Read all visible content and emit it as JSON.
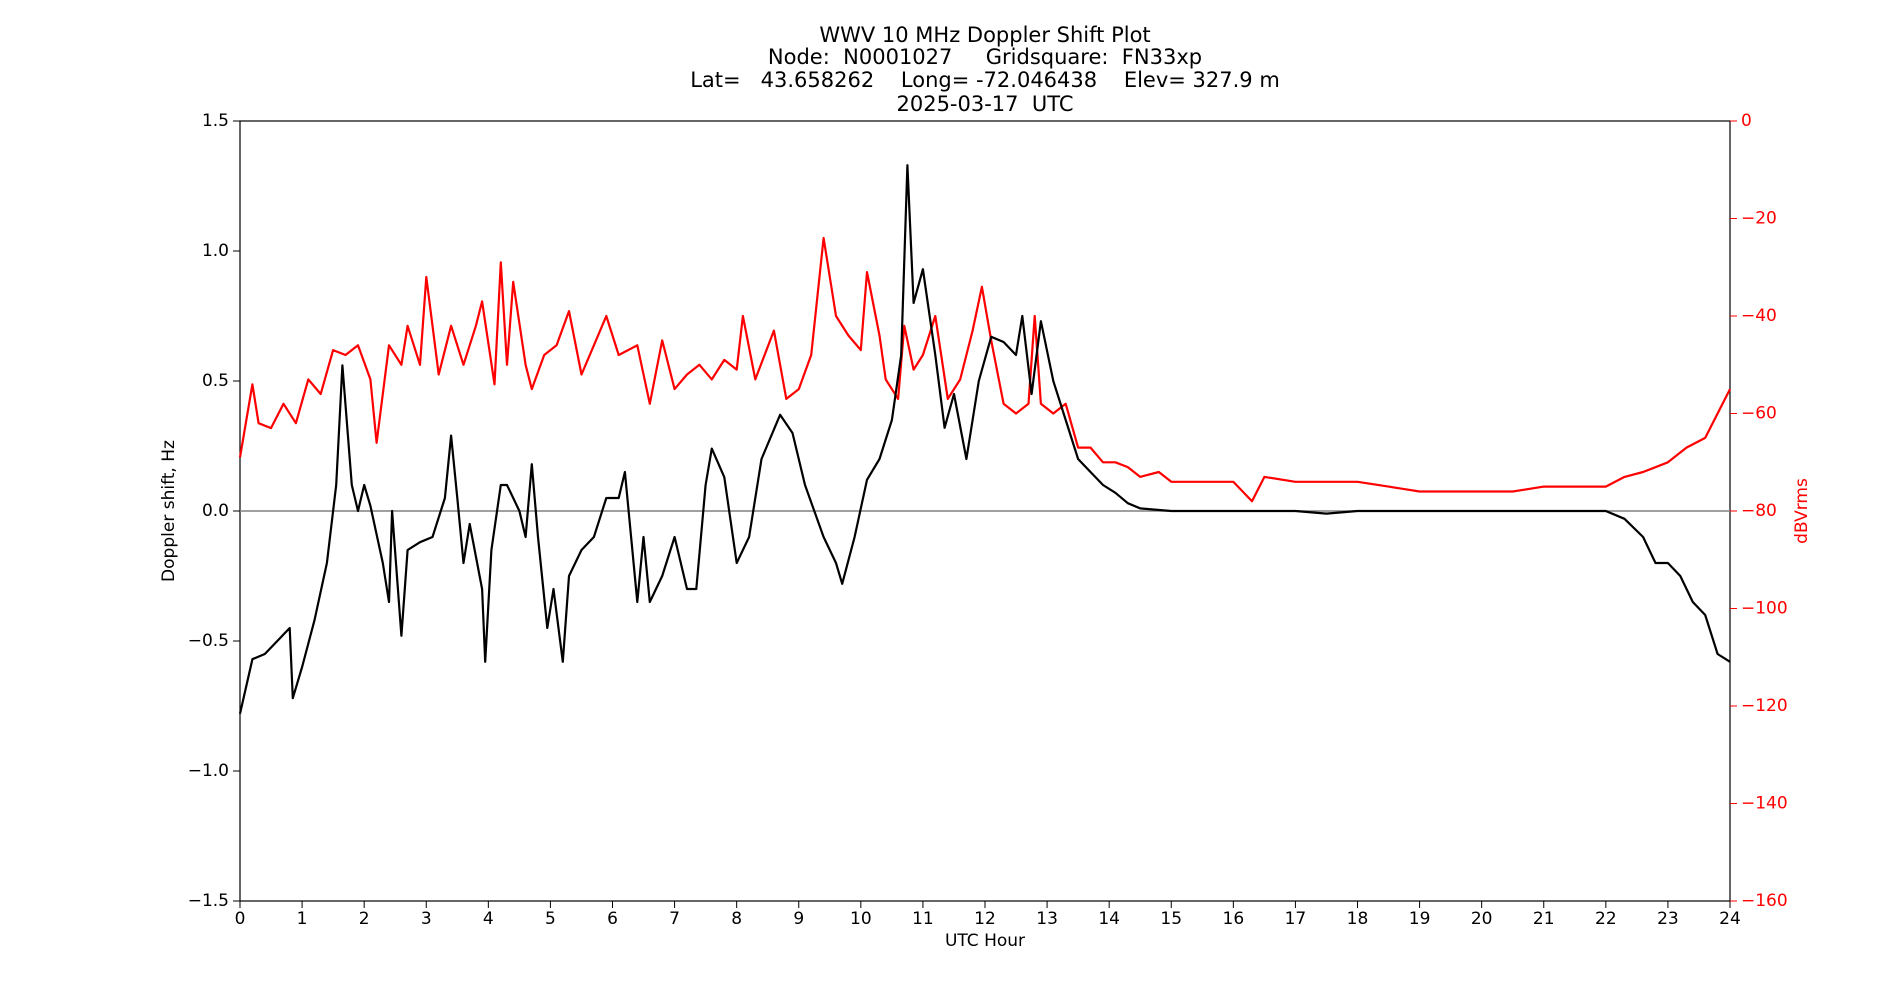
{
  "chart_data": {
    "type": "line",
    "title": [
      "WWV 10 MHz Doppler Shift Plot",
      "Node:  N0001027     Gridsquare:  FN33xp",
      "Lat=   43.658262    Long= -72.046438    Elev= 327.9 m",
      "2025-03-17  UTC"
    ],
    "xlabel": "UTC Hour",
    "ylabel": "Doppler shift, Hz",
    "y2label": "dBVrms",
    "xlim": [
      0,
      24
    ],
    "xticks": [
      0,
      1,
      2,
      3,
      4,
      5,
      6,
      7,
      8,
      9,
      10,
      11,
      12,
      13,
      14,
      15,
      16,
      17,
      18,
      19,
      20,
      21,
      22,
      23,
      24
    ],
    "ylim": [
      -1.5,
      1.5
    ],
    "yticks": [
      {
        "value": -1.5,
        "label": "−1.5"
      },
      {
        "value": -1,
        "label": "−1.0"
      },
      {
        "value": -0.5,
        "label": "−0.5"
      },
      {
        "value": 0,
        "label": "0.0"
      },
      0.5,
      {
        "value": 1,
        "label": "1.0"
      },
      1.5
    ],
    "y2lim": [
      -160,
      0
    ],
    "y2ticks": [
      {
        "value": -160,
        "label": "−160"
      },
      {
        "value": -140,
        "label": "−140"
      },
      {
        "value": -120,
        "label": "−120"
      },
      {
        "value": -100,
        "label": "−100"
      },
      {
        "value": -80,
        "label": "−80"
      },
      {
        "value": -60,
        "label": "−60"
      },
      {
        "value": -40,
        "label": "−40"
      },
      {
        "value": -20,
        "label": "−20"
      },
      0
    ],
    "y2color": "#ff0000",
    "hline": 0,
    "hline_color": "#808080",
    "series": [
      {
        "color": "#000000",
        "axis": "y",
        "x": [
          0,
          0.2,
          0.4,
          0.6,
          0.8,
          0.85,
          1.0,
          1.2,
          1.4,
          1.55,
          1.65,
          1.8,
          1.9,
          2.0,
          2.1,
          2.3,
          2.4,
          2.45,
          2.6,
          2.7,
          2.9,
          3.1,
          3.3,
          3.4,
          3.5,
          3.6,
          3.7,
          3.9,
          3.95,
          4.05,
          4.2,
          4.3,
          4.5,
          4.6,
          4.7,
          4.8,
          4.95,
          5.05,
          5.2,
          5.3,
          5.5,
          5.7,
          5.9,
          6.1,
          6.2,
          6.4,
          6.5,
          6.6,
          6.8,
          7.0,
          7.2,
          7.35,
          7.5,
          7.6,
          7.8,
          8.0,
          8.2,
          8.4,
          8.7,
          8.9,
          9.1,
          9.4,
          9.6,
          9.7,
          9.9,
          10.1,
          10.3,
          10.5,
          10.65,
          10.75,
          10.85,
          11.0,
          11.2,
          11.35,
          11.5,
          11.7,
          11.9,
          12.1,
          12.3,
          12.5,
          12.6,
          12.75,
          12.9,
          13.1,
          13.3,
          13.5,
          13.7,
          13.9,
          14.1,
          14.3,
          14.5,
          15,
          16,
          17,
          17.5,
          18,
          20,
          21,
          22,
          22.3,
          22.6,
          22.8,
          23,
          23.2,
          23.4,
          23.6,
          23.8,
          24
        ],
        "values": [
          -0.78,
          -0.57,
          -0.55,
          -0.5,
          -0.45,
          -0.72,
          -0.6,
          -0.42,
          -0.2,
          0.1,
          0.56,
          0.1,
          0.0,
          0.1,
          0.02,
          -0.2,
          -0.35,
          0.0,
          -0.48,
          -0.15,
          -0.12,
          -0.1,
          0.05,
          0.29,
          0.05,
          -0.2,
          -0.05,
          -0.3,
          -0.58,
          -0.15,
          0.1,
          0.1,
          0.0,
          -0.1,
          0.18,
          -0.1,
          -0.45,
          -0.3,
          -0.58,
          -0.25,
          -0.15,
          -0.1,
          0.05,
          0.05,
          0.15,
          -0.35,
          -0.1,
          -0.35,
          -0.25,
          -0.1,
          -0.3,
          -0.3,
          0.1,
          0.24,
          0.13,
          -0.2,
          -0.1,
          0.2,
          0.37,
          0.3,
          0.1,
          -0.1,
          -0.2,
          -0.28,
          -0.1,
          0.12,
          0.2,
          0.35,
          0.6,
          1.33,
          0.8,
          0.93,
          0.6,
          0.32,
          0.45,
          0.2,
          0.5,
          0.67,
          0.65,
          0.6,
          0.75,
          0.45,
          0.73,
          0.5,
          0.35,
          0.2,
          0.15,
          0.1,
          0.07,
          0.03,
          0.01,
          0.0,
          0.0,
          0.0,
          -0.01,
          0.0,
          0.0,
          0.0,
          0.0,
          -0.03,
          -0.1,
          -0.2,
          -0.2,
          -0.25,
          -0.35,
          -0.4,
          -0.55,
          -0.58
        ]
      },
      {
        "color": "#ff0000",
        "axis": "y2",
        "x": [
          0,
          0.2,
          0.3,
          0.5,
          0.7,
          0.9,
          1.1,
          1.3,
          1.5,
          1.7,
          1.9,
          2.1,
          2.2,
          2.4,
          2.6,
          2.7,
          2.9,
          3.0,
          3.2,
          3.4,
          3.6,
          3.8,
          3.9,
          4.1,
          4.2,
          4.3,
          4.4,
          4.6,
          4.7,
          4.9,
          5.1,
          5.3,
          5.5,
          5.7,
          5.9,
          6.1,
          6.4,
          6.6,
          6.8,
          7.0,
          7.2,
          7.4,
          7.6,
          7.8,
          8.0,
          8.1,
          8.3,
          8.6,
          8.8,
          9.0,
          9.2,
          9.4,
          9.6,
          9.8,
          10.0,
          10.1,
          10.3,
          10.4,
          10.6,
          10.7,
          10.85,
          11.0,
          11.2,
          11.4,
          11.6,
          11.8,
          11.95,
          12.1,
          12.3,
          12.5,
          12.7,
          12.8,
          12.9,
          13.1,
          13.3,
          13.5,
          13.7,
          13.9,
          14.1,
          14.3,
          14.5,
          14.8,
          15.0,
          15.5,
          16.0,
          16.3,
          16.5,
          17.0,
          17.5,
          18,
          18.5,
          19,
          19.5,
          20,
          20.5,
          21,
          21.5,
          22,
          22.3,
          22.6,
          23.0,
          23.3,
          23.6,
          23.8,
          24.0
        ],
        "values": [
          -69,
          -54,
          -62,
          -63,
          -58,
          -62,
          -53,
          -56,
          -47,
          -48,
          -46,
          -53,
          -66,
          -46,
          -50,
          -42,
          -50,
          -32,
          -52,
          -42,
          -50,
          -42,
          -37,
          -54,
          -29,
          -50,
          -33,
          -50,
          -55,
          -48,
          -46,
          -39,
          -52,
          -46,
          -40,
          -48,
          -46,
          -58,
          -45,
          -55,
          -52,
          -50,
          -53,
          -49,
          -51,
          -40,
          -53,
          -43,
          -57,
          -55,
          -48,
          -24,
          -40,
          -44,
          -47,
          -31,
          -44,
          -53,
          -57,
          -42,
          -51,
          -48,
          -40,
          -57,
          -53,
          -43,
          -34,
          -45,
          -58,
          -60,
          -58,
          -40,
          -58,
          -60,
          -58,
          -67,
          -67,
          -70,
          -70,
          -71,
          -73,
          -72,
          -74,
          -74,
          -74,
          -78,
          -73,
          -74,
          -74,
          -74,
          -75,
          -76,
          -76,
          -76,
          -76,
          -75,
          -75,
          -75,
          -73,
          -72,
          -70,
          -67,
          -65,
          -60,
          -55
        ]
      }
    ]
  }
}
